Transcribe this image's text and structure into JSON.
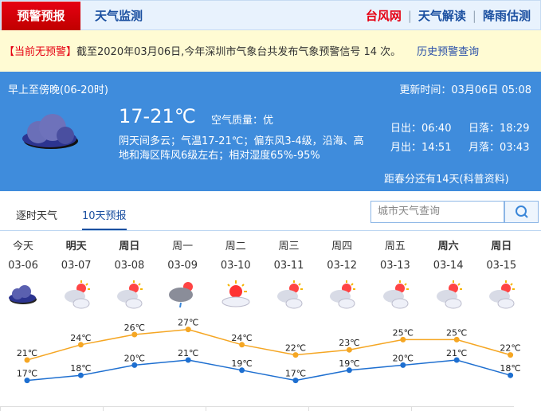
{
  "nav": {
    "active": "预警预报",
    "tab2": "天气监测",
    "right": [
      "台风网",
      "天气解读",
      "降雨估测"
    ]
  },
  "alert": {
    "status": "【当前无预警】",
    "text": "截至2020年03月06日,今年深圳市气象台共发布气象预警信号 14 次。",
    "link": "历史预警查询"
  },
  "current": {
    "period": "早上至傍晚(06-20时)",
    "update": "更新时间：03月06日 05:08",
    "temp": "17-21℃",
    "aqi": "空气质量：优",
    "desc1": "阴天间多云；气温17-21℃；偏东风3-4级，沿海、高",
    "desc2": "地和海区阵风6级左右；相对湿度65%-95%",
    "sunrise": "日出：06:40",
    "sunset": "日落：18:29",
    "moonrise": "月出：14:51",
    "moonset": "月落：03:43",
    "solar_term": "距春分还有14天(科普资料)",
    "icon": "cloudy-icon"
  },
  "tabs": [
    {
      "label": "逐时天气"
    },
    {
      "label": "10天预报",
      "active": true
    }
  ],
  "search": {
    "placeholder": "城市天气查询"
  },
  "days": [
    {
      "week": "今天",
      "date": "03-06",
      "icon": "cloudy",
      "bold": false
    },
    {
      "week": "明天",
      "date": "03-07",
      "icon": "partly-cloudy",
      "bold": true
    },
    {
      "week": "周日",
      "date": "03-08",
      "icon": "partly-cloudy",
      "bold": true
    },
    {
      "week": "周一",
      "date": "03-09",
      "icon": "light-rain",
      "bold": false
    },
    {
      "week": "周二",
      "date": "03-10",
      "icon": "sunny-haze",
      "bold": false
    },
    {
      "week": "周三",
      "date": "03-11",
      "icon": "partly-cloudy",
      "bold": false
    },
    {
      "week": "周四",
      "date": "03-12",
      "icon": "partly-cloudy",
      "bold": false
    },
    {
      "week": "周五",
      "date": "03-13",
      "icon": "partly-cloudy",
      "bold": false
    },
    {
      "week": "周六",
      "date": "03-14",
      "icon": "partly-cloudy",
      "bold": true
    },
    {
      "week": "周日",
      "date": "03-15",
      "icon": "partly-cloudy",
      "bold": true
    }
  ],
  "chart_data": {
    "type": "line",
    "unit": "℃",
    "series": [
      {
        "values": [
          21,
          24,
          26,
          27,
          24,
          22,
          23,
          25,
          25,
          22
        ],
        "color": "#f5a623"
      },
      {
        "values": [
          17,
          18,
          20,
          21,
          19,
          17,
          19,
          20,
          21,
          18
        ],
        "color": "#1e6fd0"
      }
    ]
  }
}
